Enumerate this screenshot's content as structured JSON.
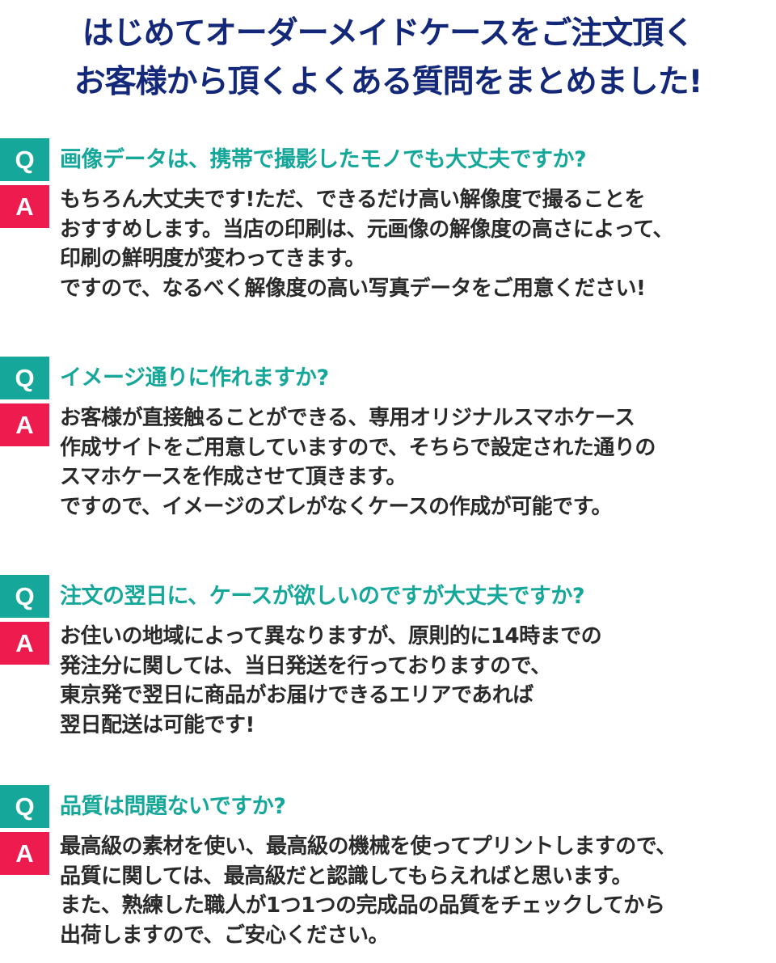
{
  "title": {
    "line1": "はじめてオーダーメイドケースをご注文頂く",
    "line2": "お客様から頂くよくある質問をまとめました!"
  },
  "badges": {
    "q": "Q",
    "a": "A"
  },
  "colors": {
    "title": "#14287a",
    "question_accent": "#16a79b",
    "answer_accent": "#ee1c4e",
    "body_text": "#2a2a2a"
  },
  "faq": [
    {
      "question": "画像データは、携帯で撮影したモノでも大丈夫ですか?",
      "answer": [
        "もちろん大丈夫です!ただ、できるだけ高い解像度で撮ることを",
        "おすすめします。当店の印刷は、元画像の解像度の高さによって、",
        "印刷の鮮明度が変わってきます。",
        "ですので、なるべく解像度の高い写真データをご用意ください!"
      ]
    },
    {
      "question": "イメージ通りに作れますか?",
      "answer": [
        "お客様が直接触ることができる、専用オリジナルスマホケース",
        "作成サイトをご用意していますので、そちらで設定された通りの",
        "スマホケースを作成させて頂きます。",
        "ですので、イメージのズレがなくケースの作成が可能です。"
      ]
    },
    {
      "question": "注文の翌日に、ケースが欲しいのですが大丈夫ですか?",
      "answer": [
        "お住いの地域によって異なりますが、原則的に14時までの",
        "発注分に関しては、当日発送を行っておりますので、",
        "東京発で翌日に商品がお届けできるエリアであれば",
        "翌日配送は可能です!"
      ]
    },
    {
      "question": "品質は問題ないですか?",
      "answer": [
        "最高級の素材を使い、最高級の機械を使ってプリントしますので、",
        "品質に関しては、最高級だと認識してもらえればと思います。",
        "また、熟練した職人が1つ1つの完成品の品質をチェックしてから",
        "出荷しますので、ご安心ください。"
      ]
    }
  ]
}
